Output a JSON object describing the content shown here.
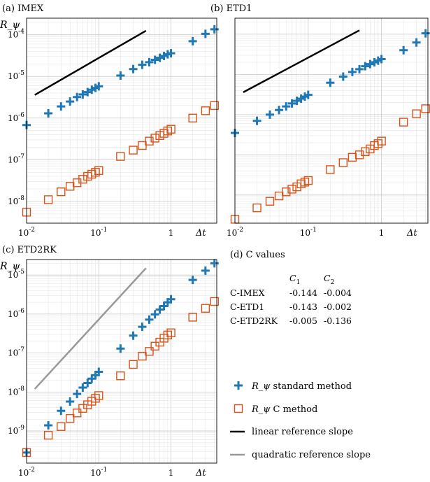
{
  "colors": {
    "standard": "#1f77b4",
    "c_method": "#d95319",
    "linear_ref": "#000000",
    "quadratic_ref": "#999999",
    "grid_minor": "#e6e6e6",
    "grid_major": "#c8c8c8"
  },
  "chart_data": [
    {
      "type": "scatter",
      "panel_label": "(a) IMEX",
      "ylabel": "R_ψ",
      "xlabel": "Δt",
      "xscale": "log",
      "yscale": "log",
      "xlim": [
        0.01,
        4.3
      ],
      "ylim": [
        3e-09,
        0.00025
      ],
      "grid": true,
      "xticks": [
        {
          "value": 0.01,
          "base": "10",
          "exp": "-2",
          "text": ""
        },
        {
          "value": 0.1,
          "base": "10",
          "exp": "-1",
          "text": ""
        },
        {
          "value": 1,
          "base": "",
          "exp": "",
          "text": "1"
        }
      ],
      "yticks": [
        {
          "value": 1e-08,
          "base": "10",
          "exp": "-8"
        },
        {
          "value": 1e-07,
          "base": "10",
          "exp": "-7"
        },
        {
          "value": 1e-06,
          "base": "10",
          "exp": "-6"
        },
        {
          "value": 1e-05,
          "base": "10",
          "exp": "-5"
        },
        {
          "value": 0.0001,
          "base": "10",
          "exp": "-4"
        }
      ],
      "x": [
        0.01,
        0.02,
        0.03,
        0.04,
        0.05,
        0.06,
        0.07,
        0.08,
        0.09,
        0.1,
        0.2,
        0.3,
        0.4,
        0.5,
        0.6,
        0.7,
        0.8,
        0.9,
        1,
        2,
        3,
        4
      ],
      "series": [
        {
          "marker": "plus",
          "values": [
            6.8e-07,
            1.3e-06,
            1.9e-06,
            2.5e-06,
            3.2e-06,
            3.7e-06,
            4.2e-06,
            4.8e-06,
            5.3e-06,
            5.8e-06,
            1.05e-05,
            1.5e-05,
            1.9e-05,
            2.2e-05,
            2.5e-05,
            2.8e-05,
            3.1e-05,
            3.4e-05,
            3.6e-05,
            7e-05,
            0.000105,
            0.000135
          ]
        },
        {
          "marker": "square",
          "values": [
            5.5e-09,
            1.1e-08,
            1.7e-08,
            2.3e-08,
            2.8e-08,
            3.4e-08,
            4e-08,
            4.5e-08,
            5e-08,
            5.5e-08,
            1.2e-07,
            1.7e-07,
            2.2e-07,
            2.8e-07,
            3.3e-07,
            3.8e-07,
            4.3e-07,
            4.9e-07,
            5.4e-07,
            1e-06,
            1.5e-06,
            2e-06
          ]
        }
      ],
      "reference_line": {
        "slope": "linear",
        "x": [
          0.013,
          0.45
        ],
        "y": [
          3.6e-06,
          0.000125
        ]
      }
    },
    {
      "type": "scatter",
      "panel_label": "(b) ETD1",
      "ylabel": "",
      "xlabel": "Δt",
      "xscale": "log",
      "yscale": "log",
      "xlim": [
        0.01,
        4.3
      ],
      "ylim": [
        2e-09,
        0.00025
      ],
      "grid": true,
      "xticks": [
        {
          "value": 0.01,
          "base": "10",
          "exp": "-2",
          "text": ""
        },
        {
          "value": 0.1,
          "base": "10",
          "exp": "-1",
          "text": ""
        },
        {
          "value": 1,
          "base": "",
          "exp": "",
          "text": "1"
        }
      ],
      "yticks": [],
      "x": [
        0.01,
        0.02,
        0.03,
        0.04,
        0.05,
        0.06,
        0.07,
        0.08,
        0.09,
        0.1,
        0.2,
        0.3,
        0.4,
        0.5,
        0.6,
        0.7,
        0.8,
        0.9,
        1,
        2,
        3,
        4
      ],
      "series": [
        {
          "marker": "plus",
          "values": [
            3.5e-07,
            7e-07,
            1e-06,
            1.3e-06,
            1.6e-06,
            1.9e-06,
            2.2e-06,
            2.5e-06,
            2.8e-06,
            3.1e-06,
            6.2e-06,
            8.8e-06,
            1.15e-05,
            1.35e-05,
            1.6e-05,
            1.8e-05,
            2e-05,
            2.2e-05,
            2.4e-05,
            4e-05,
            6.2e-05,
            0.000105
          ]
        },
        {
          "marker": "square",
          "values": [
            2.5e-09,
            4.8e-09,
            7e-09,
            9.5e-09,
            1.2e-08,
            1.4e-08,
            1.6e-08,
            1.9e-08,
            2.1e-08,
            2.3e-08,
            4.3e-08,
            6.4e-08,
            8.7e-08,
            1e-07,
            1.2e-07,
            1.4e-07,
            1.7e-07,
            1.9e-07,
            2.2e-07,
            6.5e-07,
            1.05e-06,
            1.4e-06
          ]
        }
      ],
      "reference_line": {
        "slope": "linear",
        "x": [
          0.013,
          0.5
        ],
        "y": [
          3.6e-06,
          0.000125
        ]
      }
    },
    {
      "type": "scatter",
      "panel_label": "(c) ETD2RK",
      "ylabel": "R_ψ",
      "xlabel": "Δt",
      "xscale": "log",
      "yscale": "log",
      "xlim": [
        0.01,
        4.3
      ],
      "ylim": [
        1.5e-10,
        2.5e-05
      ],
      "grid": true,
      "xticks": [
        {
          "value": 0.01,
          "base": "10",
          "exp": "-2",
          "text": ""
        },
        {
          "value": 0.1,
          "base": "10",
          "exp": "-1",
          "text": ""
        },
        {
          "value": 1,
          "base": "",
          "exp": "",
          "text": "1"
        }
      ],
      "yticks": [
        {
          "value": 1e-09,
          "base": "10",
          "exp": "-9"
        },
        {
          "value": 1e-08,
          "base": "10",
          "exp": "-8"
        },
        {
          "value": 1e-07,
          "base": "10",
          "exp": "-7"
        },
        {
          "value": 1e-06,
          "base": "10",
          "exp": "-6"
        },
        {
          "value": 1e-05,
          "base": "10",
          "exp": "-5"
        }
      ],
      "x": [
        0.01,
        0.02,
        0.03,
        0.04,
        0.05,
        0.06,
        0.07,
        0.08,
        0.09,
        0.1,
        0.2,
        0.3,
        0.4,
        0.5,
        0.6,
        0.7,
        0.8,
        0.9,
        1,
        2,
        3,
        4
      ],
      "series": [
        {
          "marker": "plus",
          "values": [
            2.8e-10,
            1.4e-09,
            3.3e-09,
            5.7e-09,
            8.9e-09,
            1.3e-08,
            1.7e-08,
            2.2e-08,
            2.7e-08,
            3.3e-08,
            1.3e-07,
            2.8e-07,
            4.7e-07,
            7.2e-07,
            9.8e-07,
            1.3e-06,
            1.6e-06,
            2e-06,
            2.4e-06,
            7.5e-06,
            1.3e-05,
            2e-05
          ]
        },
        {
          "marker": "square",
          "values": [
            2.8e-10,
            7.8e-10,
            1.3e-09,
            2.1e-09,
            2.9e-09,
            3.8e-09,
            4.7e-09,
            5.8e-09,
            6.9e-09,
            8.1e-09,
            2.6e-08,
            5.1e-08,
            8.3e-08,
            1.1e-07,
            1.5e-07,
            1.9e-07,
            2.4e-07,
            2.9e-07,
            3.3e-07,
            8.3e-07,
            1.4e-06,
            2.1e-06
          ]
        }
      ],
      "reference_line": {
        "slope": "quadratic",
        "x": [
          0.013,
          0.45
        ],
        "y": [
          1.2e-08,
          1.5e-05
        ]
      }
    }
  ],
  "c_values": {
    "title": "(d) C values",
    "headers": [
      {
        "base": "C",
        "sub": "1"
      },
      {
        "base": "C",
        "sub": "2"
      }
    ],
    "rows": [
      {
        "label": "C-IMEX",
        "c1": "-0.144",
        "c2": "-0.004"
      },
      {
        "label": "C-ETD1",
        "c1": "-0.143",
        "c2": "-0.002"
      },
      {
        "label": "C-ETD2RK",
        "c1": "-0.005",
        "c2": "-0.136"
      }
    ]
  },
  "legend": {
    "items": [
      {
        "kind": "plus",
        "symbol": "R_ψ",
        "text": "standard method"
      },
      {
        "kind": "square",
        "symbol": "R_ψ",
        "text": "C method"
      },
      {
        "kind": "line-black",
        "symbol": "",
        "text": "linear reference slope"
      },
      {
        "kind": "line-gray",
        "symbol": "",
        "text": "quadratic reference slope"
      }
    ]
  }
}
